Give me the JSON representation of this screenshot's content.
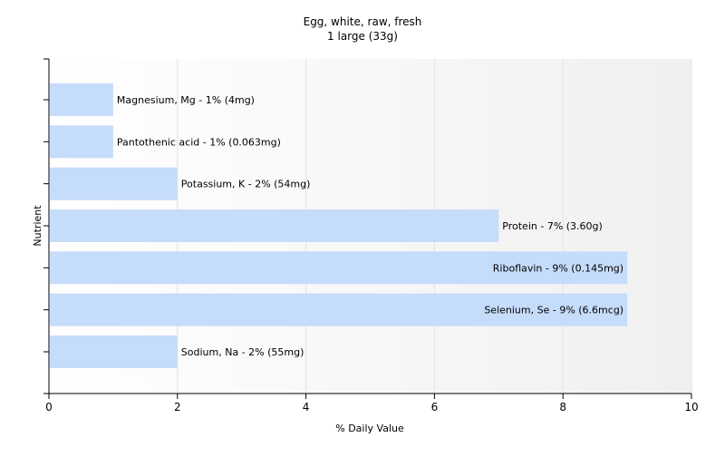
{
  "chart_data": {
    "type": "bar",
    "orientation": "horizontal",
    "title": "Egg, white, raw, fresh",
    "subtitle": "1 large (33g)",
    "xlabel": "% Daily Value",
    "ylabel": "Nutrient",
    "xlim": [
      0,
      10
    ],
    "xticks": [
      0,
      2,
      4,
      6,
      8,
      10
    ],
    "grid": "vertical",
    "bar_color": "#c6dcfb",
    "label_inside_threshold": 8,
    "series": [
      {
        "labels": [
          "Magnesium, Mg - 1% (4mg)",
          "Pantothenic acid - 1% (0.063mg)",
          "Potassium, K - 2% (54mg)",
          "Protein - 7% (3.60g)",
          "Riboflavin - 9% (0.145mg)",
          "Selenium, Se - 9% (6.6mcg)",
          "Sodium, Na - 2% (55mg)"
        ],
        "values": [
          1,
          1,
          2,
          7,
          9,
          9,
          2
        ]
      }
    ]
  }
}
